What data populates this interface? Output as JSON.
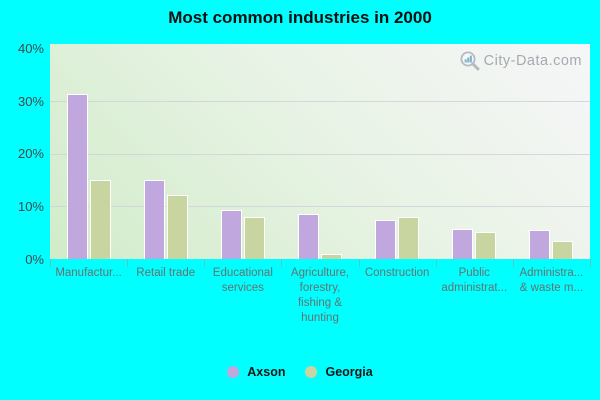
{
  "title": "Most common industries in 2000",
  "watermark": {
    "text": "City-Data.com",
    "icon": "magnifier-with-bars-icon"
  },
  "colors": {
    "background": "#00ffff",
    "axson_bar": "#c0a7de",
    "georgia_bar": "#c9d5a0",
    "bar_border": "#ffffff",
    "plot_gradient_top": "#f6f6f8",
    "plot_gradient_bottom": "#d1ecc9",
    "gridline": "#d2d0dc",
    "y_label": "#43474b",
    "x_label": "#657272",
    "title": "#101010",
    "watermark_text": "#969ea5",
    "watermark_bars_blue": "#6fa7cc"
  },
  "chart_data": {
    "type": "bar",
    "title": "Most common industries in 2000",
    "categories": [
      "Manufactur...",
      "Retail trade",
      "Educational services",
      "Agriculture, forestry, fishing & hunting",
      "Construction",
      "Public administrat...",
      "Administra... & waste m..."
    ],
    "category_display_lines": [
      [
        "Manufactur..."
      ],
      [
        "Retail trade"
      ],
      [
        "Educational",
        "services"
      ],
      [
        "Agriculture,",
        "forestry,",
        "fishing &",
        "hunting"
      ],
      [
        "Construction"
      ],
      [
        "Public",
        "administrat..."
      ],
      [
        "Administra...",
        "& waste m..."
      ]
    ],
    "series": [
      {
        "name": "Axson",
        "color": "#c0a7de",
        "values": [
          31.3,
          15.1,
          9.3,
          8.6,
          7.4,
          5.8,
          5.6
        ]
      },
      {
        "name": "Georgia",
        "color": "#c9d5a0",
        "values": [
          15.0,
          12.2,
          8.0,
          1.0,
          7.9,
          5.1,
          3.5
        ]
      }
    ],
    "ylabel": "",
    "xlabel": "",
    "ylim": [
      0,
      40
    ],
    "yticks": [
      {
        "value": 0,
        "label": "0%"
      },
      {
        "value": 10,
        "label": "10%"
      },
      {
        "value": 20,
        "label": "20%"
      },
      {
        "value": 30,
        "label": "30%"
      },
      {
        "value": 40,
        "label": "40%"
      }
    ],
    "grid": true,
    "legend_position": "bottom"
  }
}
